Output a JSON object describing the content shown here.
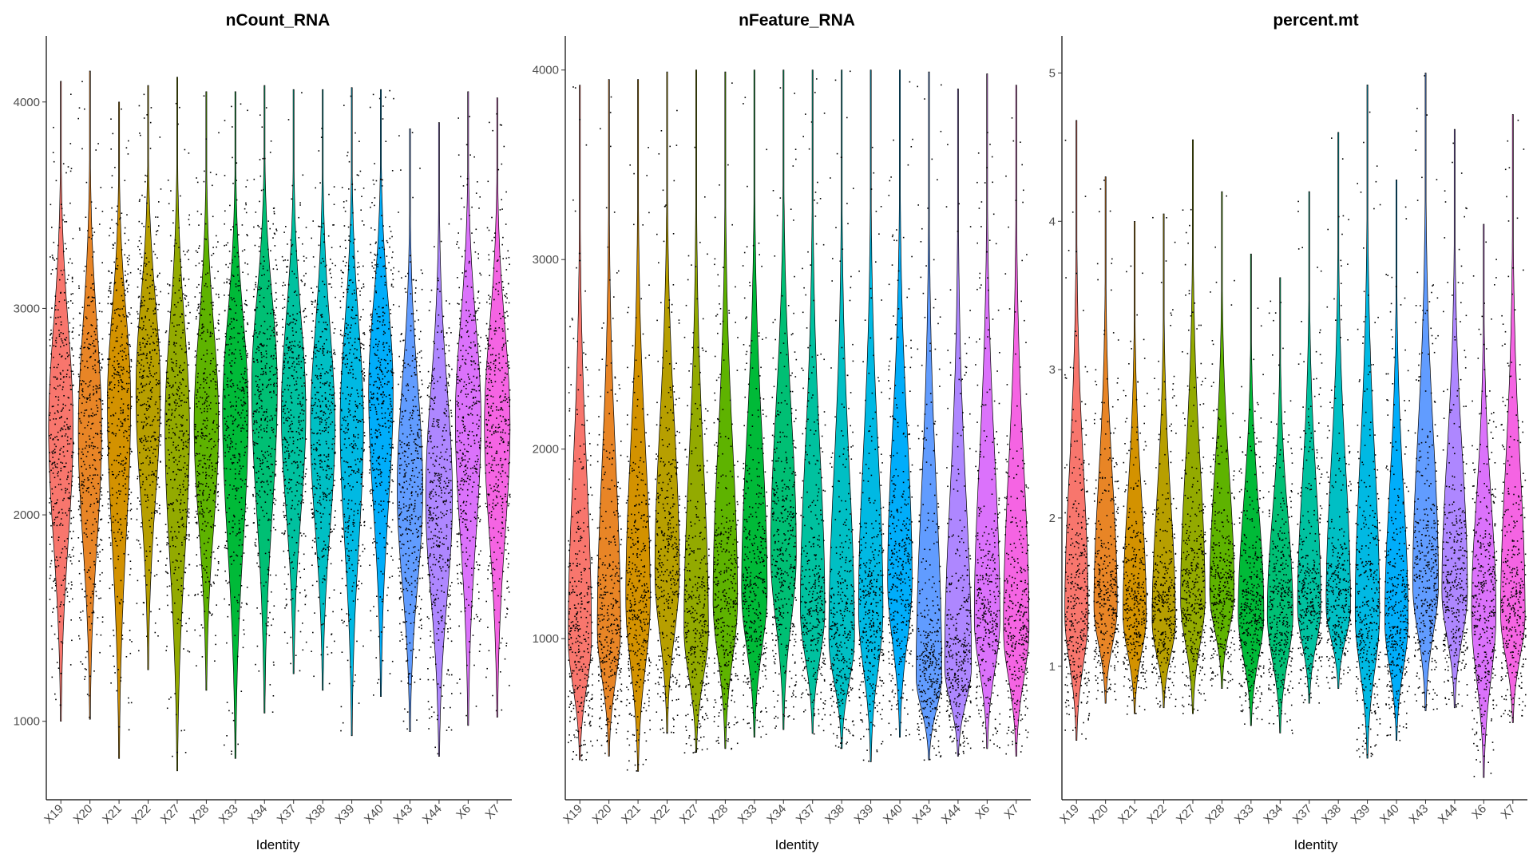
{
  "chart_data": [
    {
      "type": "violin",
      "title": "nCount_RNA",
      "xlabel": "Identity",
      "ylabel": "",
      "ylim": [
        620,
        4320
      ],
      "yticks": [
        1000,
        2000,
        3000,
        4000
      ],
      "categories": [
        "X19",
        "X20",
        "X21",
        "X22",
        "X27",
        "X28",
        "X33",
        "X34",
        "X37",
        "X38",
        "X39",
        "X40",
        "X43",
        "X44",
        "X6",
        "X7"
      ],
      "series": [
        {
          "min": 1000,
          "max": 4100,
          "median": 2400,
          "peak_density_value": 2420,
          "max_half_width": 0.42
        },
        {
          "min": 1010,
          "max": 4150,
          "median": 2380,
          "peak_density_value": 2400,
          "max_half_width": 0.4
        },
        {
          "min": 820,
          "max": 4000,
          "median": 2520,
          "peak_density_value": 2550,
          "max_half_width": 0.4
        },
        {
          "min": 1250,
          "max": 4080,
          "median": 2580,
          "peak_density_value": 2600,
          "max_half_width": 0.42
        },
        {
          "min": 760,
          "max": 4120,
          "median": 2400,
          "peak_density_value": 2420,
          "max_half_width": 0.42
        },
        {
          "min": 1150,
          "max": 4050,
          "median": 2420,
          "peak_density_value": 2440,
          "max_half_width": 0.42
        },
        {
          "min": 820,
          "max": 4050,
          "median": 2480,
          "peak_density_value": 2500,
          "max_half_width": 0.44
        },
        {
          "min": 1040,
          "max": 4080,
          "median": 2600,
          "peak_density_value": 2620,
          "max_half_width": 0.44
        },
        {
          "min": 1230,
          "max": 4060,
          "median": 2480,
          "peak_density_value": 2500,
          "max_half_width": 0.42
        },
        {
          "min": 1150,
          "max": 4060,
          "median": 2400,
          "peak_density_value": 2420,
          "max_half_width": 0.42
        },
        {
          "min": 930,
          "max": 4070,
          "median": 2420,
          "peak_density_value": 2440,
          "max_half_width": 0.4
        },
        {
          "min": 1120,
          "max": 4060,
          "median": 2580,
          "peak_density_value": 2600,
          "max_half_width": 0.42
        },
        {
          "min": 950,
          "max": 3870,
          "median": 2100,
          "peak_density_value": 2120,
          "max_half_width": 0.44
        },
        {
          "min": 830,
          "max": 3900,
          "median": 2070,
          "peak_density_value": 2080,
          "max_half_width": 0.46
        },
        {
          "min": 980,
          "max": 4050,
          "median": 2450,
          "peak_density_value": 2460,
          "max_half_width": 0.44
        },
        {
          "min": 1020,
          "max": 4020,
          "median": 2420,
          "peak_density_value": 2440,
          "max_half_width": 0.44
        }
      ],
      "colors": [
        "#F8766D",
        "#E88526",
        "#D39200",
        "#B79F00",
        "#93AA00",
        "#5EB300",
        "#00BA38",
        "#00BF74",
        "#00C19F",
        "#00BFC4",
        "#00B9E3",
        "#00ADFA",
        "#619CFF",
        "#AE87FF",
        "#DB72FB",
        "#F564E3",
        "#FF61C3",
        "#FF699C"
      ]
    },
    {
      "type": "violin",
      "title": "nFeature_RNA",
      "xlabel": "Identity",
      "ylabel": "",
      "ylim": [
        150,
        4180
      ],
      "yticks": [
        1000,
        2000,
        3000,
        4000
      ],
      "categories": [
        "X19",
        "X20",
        "X21",
        "X22",
        "X27",
        "X28",
        "X33",
        "X34",
        "X37",
        "X38",
        "X39",
        "X40",
        "X43",
        "X44",
        "X6",
        "X7"
      ],
      "series": [
        {
          "min": 360,
          "max": 3920,
          "median": 1100,
          "peak_density_value": 1000,
          "max_half_width": 0.4
        },
        {
          "min": 380,
          "max": 3950,
          "median": 1150,
          "peak_density_value": 1050,
          "max_half_width": 0.4
        },
        {
          "min": 300,
          "max": 3950,
          "median": 1300,
          "peak_density_value": 1200,
          "max_half_width": 0.42
        },
        {
          "min": 500,
          "max": 3990,
          "median": 1450,
          "peak_density_value": 1350,
          "max_half_width": 0.42
        },
        {
          "min": 400,
          "max": 4000,
          "median": 1150,
          "peak_density_value": 1050,
          "max_half_width": 0.42
        },
        {
          "min": 420,
          "max": 3990,
          "median": 1300,
          "peak_density_value": 1200,
          "max_half_width": 0.42
        },
        {
          "min": 480,
          "max": 4000,
          "median": 1350,
          "peak_density_value": 1250,
          "max_half_width": 0.44
        },
        {
          "min": 520,
          "max": 4000,
          "median": 1550,
          "peak_density_value": 1450,
          "max_half_width": 0.44
        },
        {
          "min": 500,
          "max": 4000,
          "median": 1250,
          "peak_density_value": 1150,
          "max_half_width": 0.42
        },
        {
          "min": 420,
          "max": 4000,
          "median": 1100,
          "peak_density_value": 1000,
          "max_half_width": 0.44
        },
        {
          "min": 350,
          "max": 4000,
          "median": 1250,
          "peak_density_value": 1150,
          "max_half_width": 0.42
        },
        {
          "min": 480,
          "max": 4000,
          "median": 1400,
          "peak_density_value": 1300,
          "max_half_width": 0.42
        },
        {
          "min": 360,
          "max": 3990,
          "median": 900,
          "peak_density_value": 800,
          "max_half_width": 0.44
        },
        {
          "min": 380,
          "max": 3900,
          "median": 950,
          "peak_density_value": 850,
          "max_half_width": 0.46
        },
        {
          "min": 420,
          "max": 3980,
          "median": 1200,
          "peak_density_value": 1100,
          "max_half_width": 0.44
        },
        {
          "min": 380,
          "max": 3920,
          "median": 1150,
          "peak_density_value": 1050,
          "max_half_width": 0.44
        }
      ],
      "colors": [
        "#F8766D",
        "#E88526",
        "#D39200",
        "#B79F00",
        "#93AA00",
        "#5EB300",
        "#00BA38",
        "#00BF74",
        "#00C19F",
        "#00BFC4",
        "#00B9E3",
        "#00ADFA",
        "#619CFF",
        "#AE87FF",
        "#DB72FB",
        "#F564E3",
        "#FF61C3",
        "#FF699C"
      ]
    },
    {
      "type": "violin",
      "title": "percent.mt",
      "xlabel": "Identity",
      "ylabel": "",
      "ylim": [
        0.1,
        5.25
      ],
      "yticks": [
        1,
        2,
        3,
        4,
        5
      ],
      "categories": [
        "X19",
        "X20",
        "X21",
        "X22",
        "X27",
        "X28",
        "X33",
        "X34",
        "X37",
        "X38",
        "X39",
        "X40",
        "X43",
        "X44",
        "X6",
        "X7"
      ],
      "series": [
        {
          "min": 0.5,
          "max": 4.68,
          "median": 1.45,
          "peak_density_value": 1.35,
          "max_half_width": 0.4
        },
        {
          "min": 0.75,
          "max": 4.3,
          "median": 1.5,
          "peak_density_value": 1.4,
          "max_half_width": 0.4
        },
        {
          "min": 0.68,
          "max": 4.0,
          "median": 1.45,
          "peak_density_value": 1.35,
          "max_half_width": 0.4
        },
        {
          "min": 0.72,
          "max": 4.05,
          "median": 1.4,
          "peak_density_value": 1.3,
          "max_half_width": 0.4
        },
        {
          "min": 0.68,
          "max": 4.55,
          "median": 1.55,
          "peak_density_value": 1.45,
          "max_half_width": 0.42
        },
        {
          "min": 0.85,
          "max": 4.2,
          "median": 1.6,
          "peak_density_value": 1.5,
          "max_half_width": 0.42
        },
        {
          "min": 0.6,
          "max": 3.78,
          "median": 1.4,
          "peak_density_value": 1.35,
          "max_half_width": 0.44
        },
        {
          "min": 0.55,
          "max": 3.62,
          "median": 1.4,
          "peak_density_value": 1.35,
          "max_half_width": 0.44
        },
        {
          "min": 0.75,
          "max": 4.2,
          "median": 1.5,
          "peak_density_value": 1.4,
          "max_half_width": 0.4
        },
        {
          "min": 0.85,
          "max": 4.6,
          "median": 1.5,
          "peak_density_value": 1.4,
          "max_half_width": 0.42
        },
        {
          "min": 0.38,
          "max": 4.92,
          "median": 1.45,
          "peak_density_value": 1.35,
          "max_half_width": 0.42
        },
        {
          "min": 0.5,
          "max": 4.28,
          "median": 1.4,
          "peak_density_value": 1.3,
          "max_half_width": 0.4
        },
        {
          "min": 0.7,
          "max": 5.0,
          "median": 1.65,
          "peak_density_value": 1.55,
          "max_half_width": 0.44
        },
        {
          "min": 0.72,
          "max": 4.62,
          "median": 1.6,
          "peak_density_value": 1.5,
          "max_half_width": 0.44
        },
        {
          "min": 0.25,
          "max": 3.98,
          "median": 1.45,
          "peak_density_value": 1.35,
          "max_half_width": 0.42
        },
        {
          "min": 0.62,
          "max": 4.72,
          "median": 1.45,
          "peak_density_value": 1.35,
          "max_half_width": 0.42
        }
      ],
      "colors": [
        "#F8766D",
        "#E88526",
        "#D39200",
        "#B79F00",
        "#93AA00",
        "#5EB300",
        "#00BA38",
        "#00BF74",
        "#00C19F",
        "#00BFC4",
        "#00B9E3",
        "#00ADFA",
        "#619CFF",
        "#AE87FF",
        "#DB72FB",
        "#F564E3",
        "#FF61C3",
        "#FF699C"
      ]
    }
  ]
}
